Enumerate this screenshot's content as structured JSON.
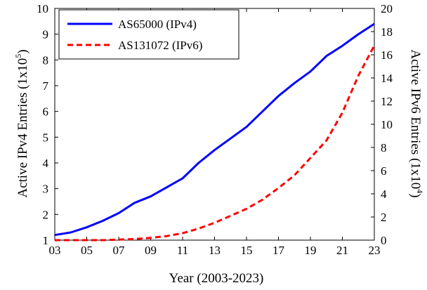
{
  "chart_data": {
    "type": "line",
    "xlabel": "Year (2003-2023)",
    "ylabel_left": "Active IPv4 Entries (1x10",
    "ylabel_left_exp": "5",
    "ylabel_right": "Active IPv6 Entries (1x10",
    "ylabel_right_exp": "4",
    "close_paren": ")",
    "xlim": [
      2003,
      2023
    ],
    "ylim_left": [
      1,
      10
    ],
    "ylim_right": [
      0,
      20
    ],
    "x_ticks": [
      2003,
      2005,
      2007,
      2009,
      2011,
      2013,
      2015,
      2017,
      2019,
      2021,
      2023
    ],
    "x_tick_labels": [
      "03",
      "05",
      "07",
      "09",
      "11",
      "13",
      "15",
      "17",
      "19",
      "21",
      "23"
    ],
    "y_left_ticks": [
      1,
      2,
      3,
      4,
      5,
      6,
      7,
      8,
      9,
      10
    ],
    "y_left_tick_labels": [
      "1",
      "2",
      "3",
      "4",
      "5",
      "6",
      "7",
      "8",
      "9",
      "10"
    ],
    "y_right_ticks": [
      0,
      2,
      4,
      6,
      8,
      10,
      12,
      14,
      16,
      18,
      20
    ],
    "y_right_tick_labels": [
      "0",
      "2",
      "4",
      "6",
      "8",
      "10",
      "12",
      "14",
      "16",
      "18",
      "20"
    ],
    "legend_position": "top-left",
    "grid": false,
    "series": [
      {
        "name": "AS65000 (IPv4)",
        "axis": "left",
        "color": "#0000ff",
        "style": "solid",
        "x": [
          2003,
          2004,
          2005,
          2006,
          2007,
          2008,
          2009,
          2010,
          2011,
          2012,
          2013,
          2014,
          2015,
          2016,
          2017,
          2018,
          2019,
          2020,
          2021,
          2022,
          2023
        ],
        "y": [
          1.2,
          1.3,
          1.5,
          1.75,
          2.05,
          2.45,
          2.7,
          3.05,
          3.4,
          4.0,
          4.5,
          4.95,
          5.4,
          6.0,
          6.6,
          7.1,
          7.55,
          8.15,
          8.55,
          9.0,
          9.4
        ]
      },
      {
        "name": "AS131072 (IPv6)",
        "axis": "right",
        "color": "#ff0000",
        "style": "dashed",
        "x": [
          2003,
          2004,
          2005,
          2006,
          2007,
          2008,
          2009,
          2010,
          2011,
          2012,
          2013,
          2014,
          2015,
          2016,
          2017,
          2018,
          2019,
          2020,
          2021,
          2022,
          2023
        ],
        "y": [
          0.0,
          0.0,
          0.0,
          0.0,
          0.05,
          0.1,
          0.2,
          0.35,
          0.6,
          1.0,
          1.5,
          2.1,
          2.7,
          3.5,
          4.5,
          5.6,
          7.1,
          8.6,
          11.0,
          14.2,
          16.8
        ]
      }
    ]
  }
}
